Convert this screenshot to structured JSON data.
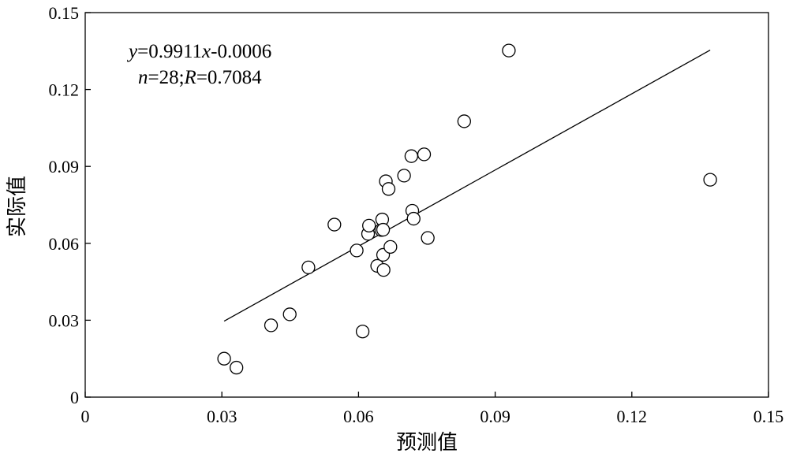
{
  "chart_data": {
    "type": "scatter",
    "xlabel": "预测值",
    "ylabel": "实际值",
    "xlim": [
      0,
      0.15
    ],
    "ylim": [
      0,
      0.15
    ],
    "x_ticks": [
      "0",
      "0.03",
      "0.06",
      "0.09",
      "0.12",
      "0.15"
    ],
    "y_ticks": [
      "0",
      "0.03",
      "0.06",
      "0.09",
      "0.12",
      "0.15"
    ],
    "grid": false,
    "points": [
      {
        "x": 0.0305,
        "y": 0.015
      },
      {
        "x": 0.0332,
        "y": 0.0115
      },
      {
        "x": 0.0408,
        "y": 0.028
      },
      {
        "x": 0.0449,
        "y": 0.0323
      },
      {
        "x": 0.049,
        "y": 0.0506
      },
      {
        "x": 0.0547,
        "y": 0.0673
      },
      {
        "x": 0.0596,
        "y": 0.0572
      },
      {
        "x": 0.0609,
        "y": 0.0256
      },
      {
        "x": 0.0621,
        "y": 0.0637
      },
      {
        "x": 0.0623,
        "y": 0.0669
      },
      {
        "x": 0.0641,
        "y": 0.0512
      },
      {
        "x": 0.065,
        "y": 0.0652
      },
      {
        "x": 0.0652,
        "y": 0.0693
      },
      {
        "x": 0.0654,
        "y": 0.0653
      },
      {
        "x": 0.0654,
        "y": 0.0555
      },
      {
        "x": 0.0655,
        "y": 0.0496
      },
      {
        "x": 0.066,
        "y": 0.0842
      },
      {
        "x": 0.0666,
        "y": 0.0812
      },
      {
        "x": 0.067,
        "y": 0.0586
      },
      {
        "x": 0.07,
        "y": 0.0864
      },
      {
        "x": 0.0716,
        "y": 0.094
      },
      {
        "x": 0.0718,
        "y": 0.0727
      },
      {
        "x": 0.0721,
        "y": 0.0696
      },
      {
        "x": 0.0744,
        "y": 0.0947
      },
      {
        "x": 0.0752,
        "y": 0.0621
      },
      {
        "x": 0.0832,
        "y": 0.1076
      },
      {
        "x": 0.093,
        "y": 0.1352
      },
      {
        "x": 0.1372,
        "y": 0.0848
      }
    ],
    "fit_line": {
      "slope": 0.9911,
      "intercept": -0.0006,
      "x_start": 0.0305,
      "x_end": 0.1372
    },
    "annotation": {
      "line1": {
        "y_var": "y",
        "eq_mid": "=0.9911",
        "x_var": "x",
        "eq_tail": "-0.0006"
      },
      "line2": {
        "n_var": "n",
        "n_val": "=28;",
        "r_var": "R",
        "r_val": "=0.7084"
      }
    }
  }
}
